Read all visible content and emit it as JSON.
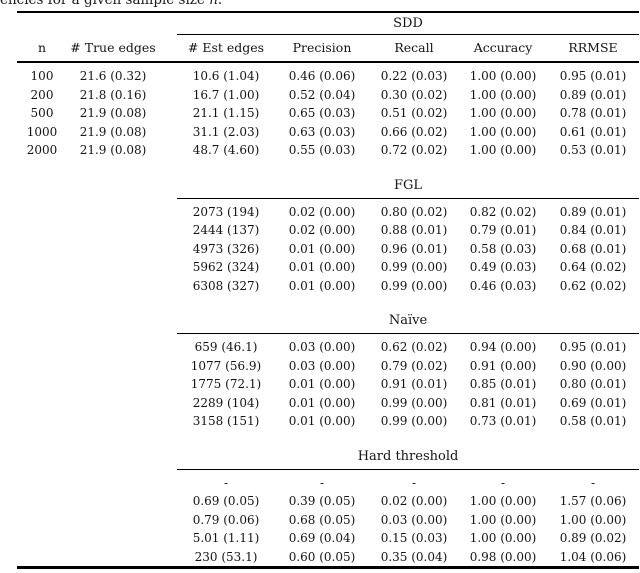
{
  "caption": {
    "prefix": "encies for a given sample size ",
    "variable": "n",
    "suffix": "."
  },
  "colors": {
    "background": "#ffffff",
    "text": "#141414",
    "rule": "#000000"
  },
  "table": {
    "columns": [
      "n",
      "# True edges",
      "# Est edges",
      "Precision",
      "Recall",
      "Accuracy",
      "RRMSE"
    ],
    "sections": [
      {
        "title": "SDD",
        "rows": [
          [
            "100",
            "21.6 (0.32)",
            "10.6 (1.04)",
            "0.46 (0.06)",
            "0.22 (0.03)",
            "1.00 (0.00)",
            "0.95 (0.01)"
          ],
          [
            "200",
            "21.8 (0.16)",
            "16.7 (1.00)",
            "0.52 (0.04)",
            "0.30 (0.02)",
            "1.00 (0.00)",
            "0.89 (0.01)"
          ],
          [
            "500",
            "21.9 (0.08)",
            "21.1 (1.15)",
            "0.65 (0.03)",
            "0.51 (0.02)",
            "1.00 (0.00)",
            "0.78 (0.01)"
          ],
          [
            "1000",
            "21.9 (0.08)",
            "31.1 (2.03)",
            "0.63 (0.03)",
            "0.66 (0.02)",
            "1.00 (0.00)",
            "0.61 (0.01)"
          ],
          [
            "2000",
            "21.9 (0.08)",
            "48.7 (4.60)",
            "0.55 (0.03)",
            "0.72 (0.02)",
            "1.00 (0.00)",
            "0.53 (0.01)"
          ]
        ]
      },
      {
        "title": "FGL",
        "rows": [
          [
            "",
            "",
            "2073 (194)",
            "0.02 (0.00)",
            "0.80 (0.02)",
            "0.82 (0.02)",
            "0.89 (0.01)"
          ],
          [
            "",
            "",
            "2444 (137)",
            "0.02 (0.00)",
            "0.88 (0.01)",
            "0.79 (0.01)",
            "0.84 (0.01)"
          ],
          [
            "",
            "",
            "4973 (326)",
            "0.01 (0.00)",
            "0.96 (0.01)",
            "0.58 (0.03)",
            "0.68 (0.01)"
          ],
          [
            "",
            "",
            "5962 (324)",
            "0.01 (0.00)",
            "0.99 (0.00)",
            "0.49 (0.03)",
            "0.64 (0.02)"
          ],
          [
            "",
            "",
            "6308 (327)",
            "0.01 (0.00)",
            "0.99 (0.00)",
            "0.46 (0.03)",
            "0.62 (0.02)"
          ]
        ]
      },
      {
        "title": "Naïve",
        "rows": [
          [
            "",
            "",
            "659 (46.1)",
            "0.03 (0.00)",
            "0.62 (0.02)",
            "0.94 (0.00)",
            "0.95 (0.01)"
          ],
          [
            "",
            "",
            "1077 (56.9)",
            "0.03 (0.00)",
            "0.79 (0.02)",
            "0.91 (0.00)",
            "0.90 (0.00)"
          ],
          [
            "",
            "",
            "1775 (72.1)",
            "0.01 (0.00)",
            "0.91 (0.01)",
            "0.85 (0.01)",
            "0.80 (0.01)"
          ],
          [
            "",
            "",
            "2289 (104)",
            "0.01 (0.00)",
            "0.99 (0.00)",
            "0.81 (0.01)",
            "0.69 (0.01)"
          ],
          [
            "",
            "",
            "3158 (151)",
            "0.01 (0.00)",
            "0.99 (0.00)",
            "0.73 (0.01)",
            "0.58 (0.01)"
          ]
        ]
      },
      {
        "title": "Hard threshold",
        "rows": [
          [
            "",
            "",
            "-",
            "-",
            "-",
            "-",
            "-"
          ],
          [
            "",
            "",
            "0.69 (0.05)",
            "0.39 (0.05)",
            "0.02 (0.00)",
            "1.00 (0.00)",
            "1.57 (0.06)"
          ],
          [
            "",
            "",
            "0.79 (0.06)",
            "0.68 (0.05)",
            "0.03 (0.00)",
            "1.00 (0.00)",
            "1.00 (0.00)"
          ],
          [
            "",
            "",
            "5.01 (1.11)",
            "0.69 (0.04)",
            "0.15 (0.03)",
            "1.00 (0.00)",
            "0.89 (0.02)"
          ],
          [
            "",
            "",
            "230 (53.1)",
            "0.60 (0.05)",
            "0.35 (0.04)",
            "0.98 (0.00)",
            "1.04 (0.06)"
          ]
        ]
      }
    ]
  }
}
